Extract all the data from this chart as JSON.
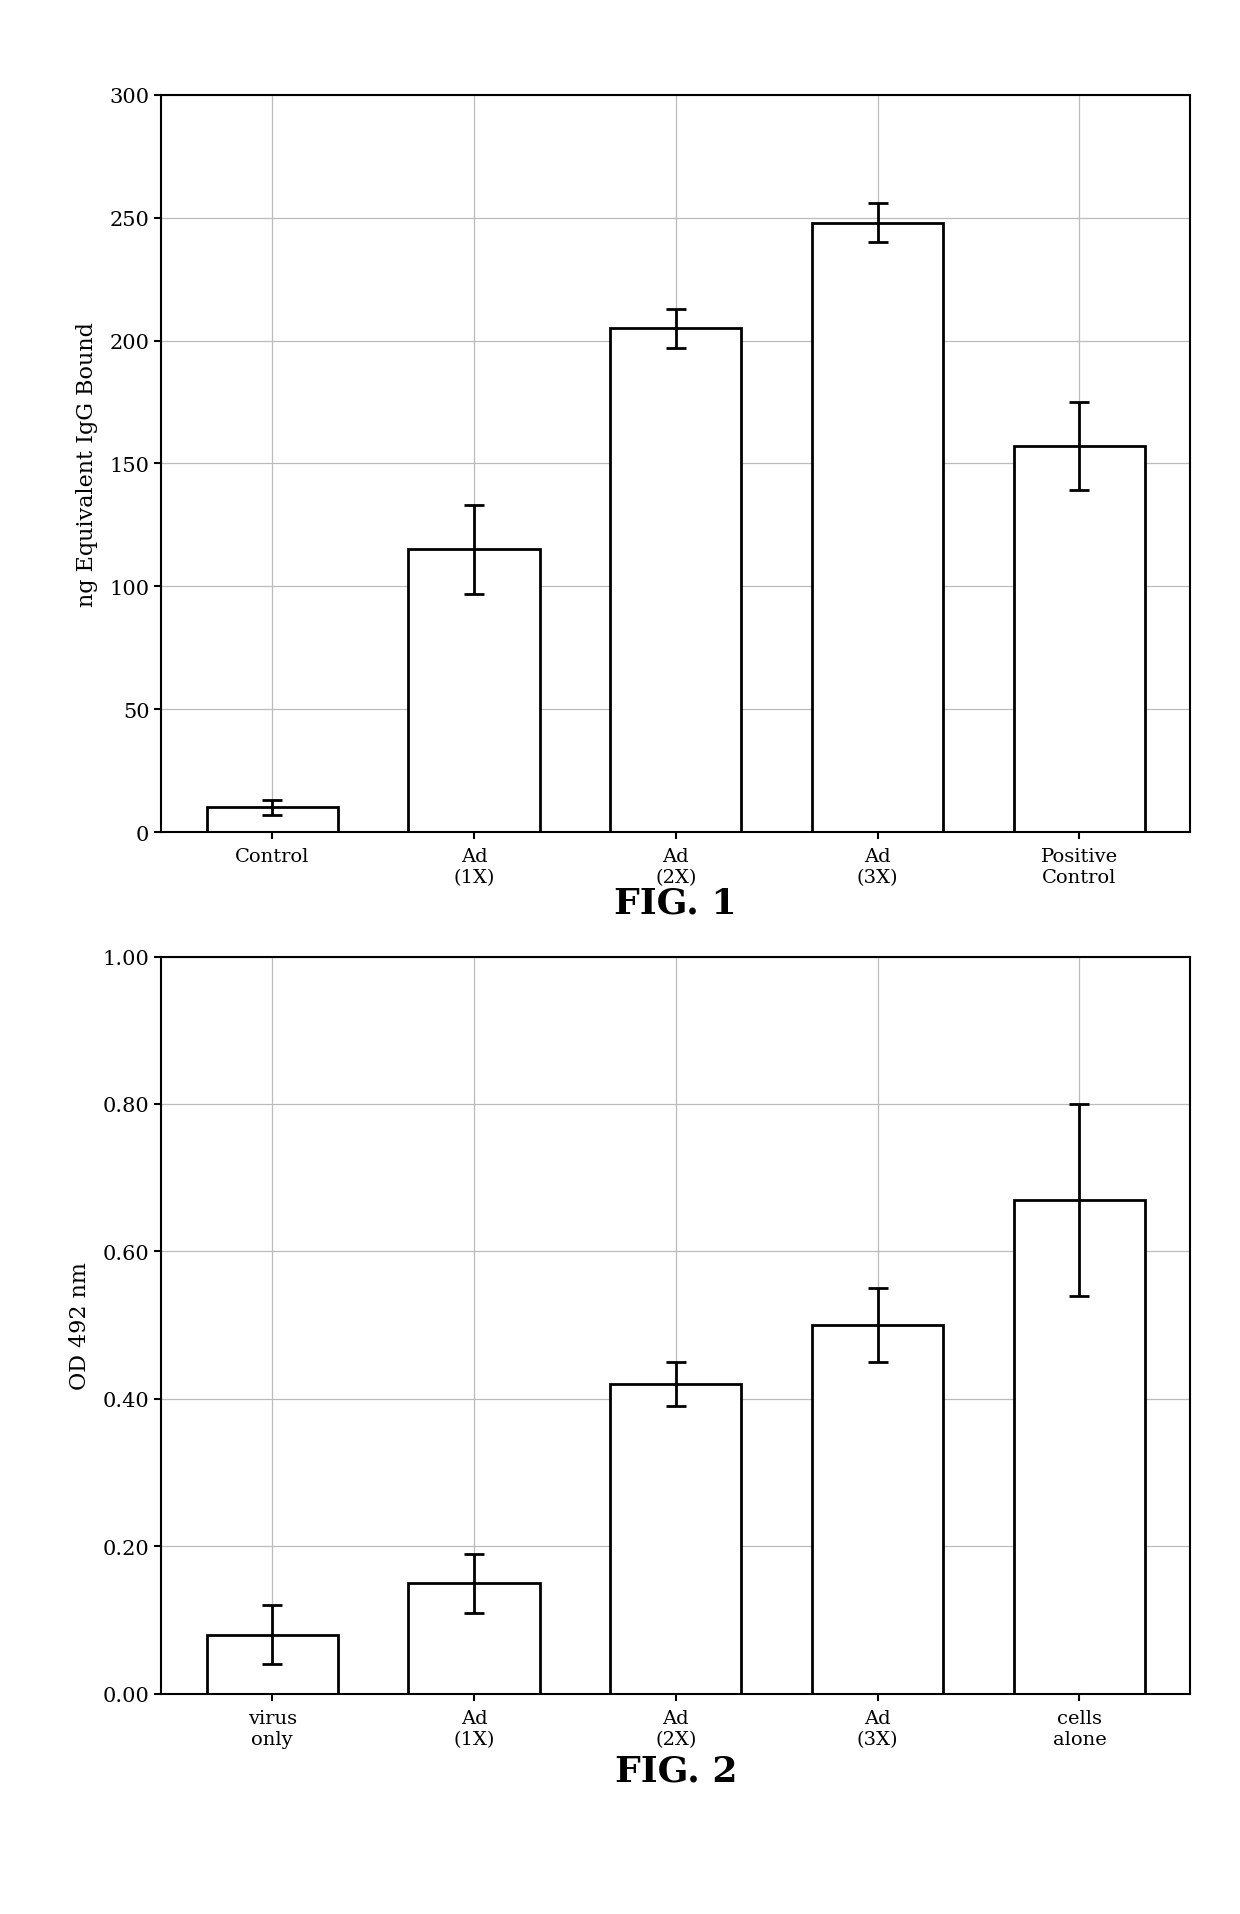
{
  "fig1": {
    "categories": [
      "Control",
      "Ad\n(1X)",
      "Ad\n(2X)",
      "Ad\n(3X)",
      "Positive\nControl"
    ],
    "values": [
      10,
      115,
      205,
      248,
      157
    ],
    "errors": [
      3,
      18,
      8,
      8,
      18
    ],
    "ylabel": "ng Equivalent IgG Bound",
    "ylim": [
      0,
      300
    ],
    "yticks": [
      0,
      50,
      100,
      150,
      200,
      250,
      300
    ],
    "title": "FIG. 1"
  },
  "fig2": {
    "categories": [
      "virus\nonly",
      "Ad\n(1X)",
      "Ad\n(2X)",
      "Ad\n(3X)",
      "cells\nalone"
    ],
    "values": [
      0.08,
      0.15,
      0.42,
      0.5,
      0.67
    ],
    "errors": [
      0.04,
      0.04,
      0.03,
      0.05,
      0.13
    ],
    "ylabel": "OD 492 nm",
    "ylim": [
      0,
      1.0
    ],
    "yticks": [
      0.0,
      0.2,
      0.4,
      0.6,
      0.8,
      1.0
    ],
    "title": "FIG. 2"
  },
  "bar_color": "#ffffff",
  "bar_edgecolor": "#000000",
  "bar_linewidth": 2.0,
  "grid_color": "#bbbbbb",
  "background_color": "#ffffff",
  "title_fontsize": 26,
  "tick_fontsize": 15,
  "label_fontsize": 16,
  "cat_fontsize": 14
}
